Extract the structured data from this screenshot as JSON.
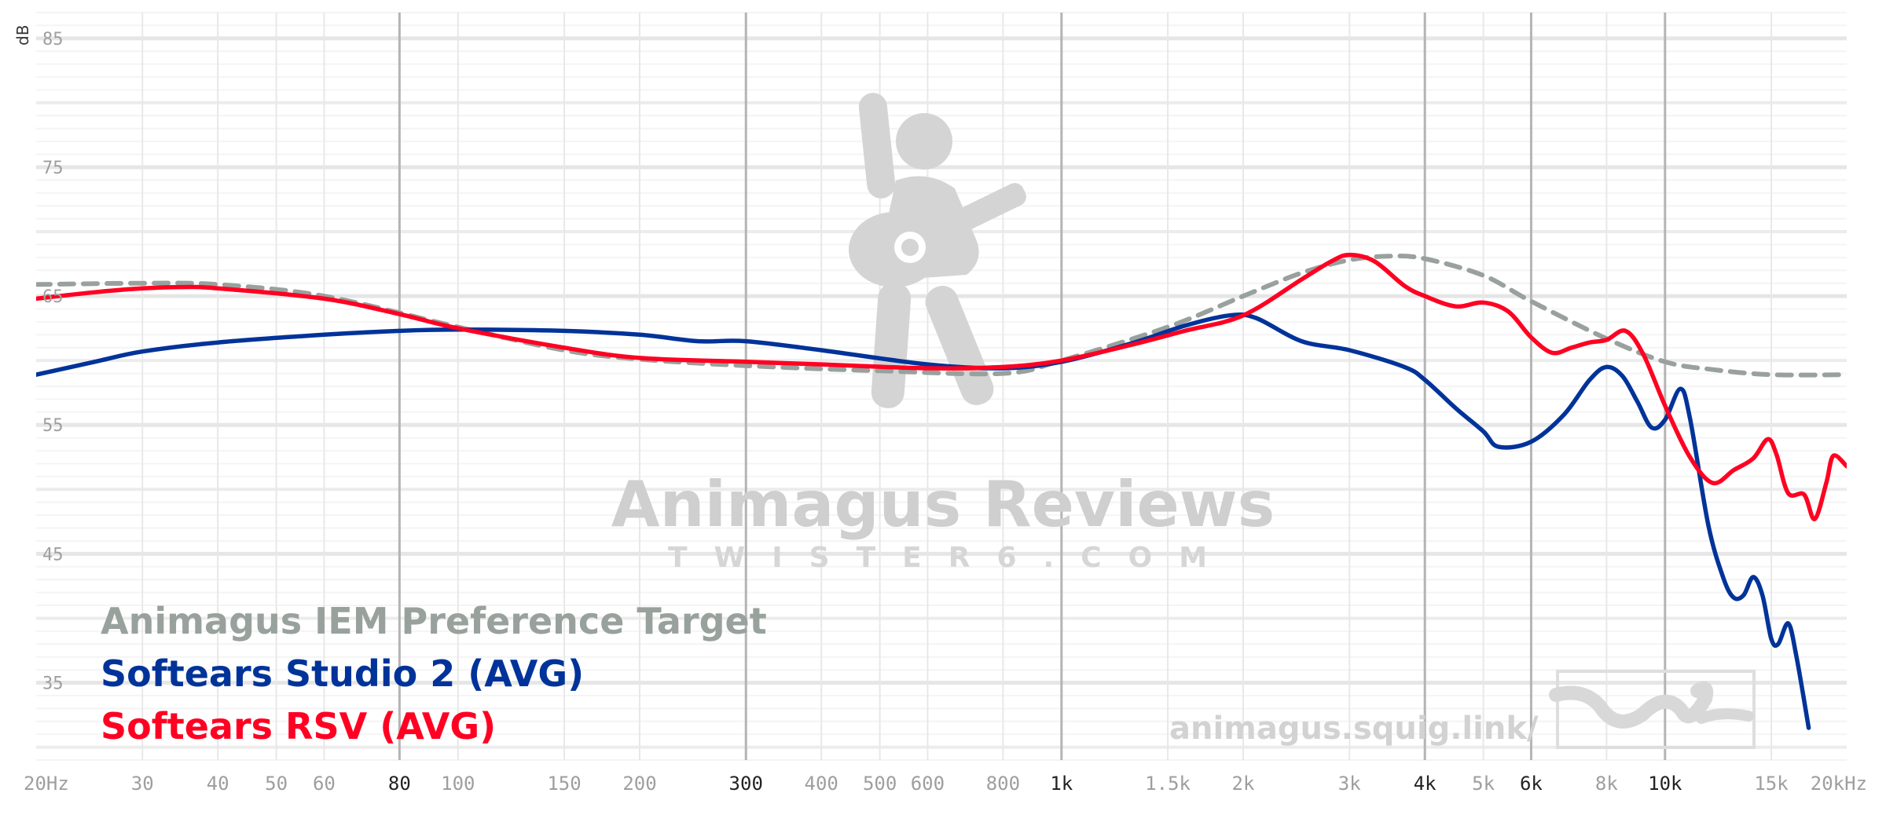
{
  "chart_data": {
    "type": "line",
    "ylabel": "dB",
    "xlabel": "",
    "x_scale": "log",
    "xlim": [
      20,
      20000
    ],
    "ylim": [
      29,
      87
    ],
    "y_ticks": [
      35,
      45,
      55,
      65,
      75,
      85
    ],
    "x_ticks": [
      {
        "value": 20,
        "label": "20Hz",
        "major": false
      },
      {
        "value": 30,
        "label": "30",
        "major": false
      },
      {
        "value": 40,
        "label": "40",
        "major": false
      },
      {
        "value": 50,
        "label": "50",
        "major": false
      },
      {
        "value": 60,
        "label": "60",
        "major": false
      },
      {
        "value": 80,
        "label": "80",
        "major": true
      },
      {
        "value": 100,
        "label": "100",
        "major": false
      },
      {
        "value": 150,
        "label": "150",
        "major": false
      },
      {
        "value": 200,
        "label": "200",
        "major": false
      },
      {
        "value": 300,
        "label": "300",
        "major": true
      },
      {
        "value": 400,
        "label": "400",
        "major": false
      },
      {
        "value": 500,
        "label": "500",
        "major": false
      },
      {
        "value": 600,
        "label": "600",
        "major": false
      },
      {
        "value": 800,
        "label": "800",
        "major": false
      },
      {
        "value": 1000,
        "label": "1k",
        "major": true
      },
      {
        "value": 1500,
        "label": "1.5k",
        "major": false
      },
      {
        "value": 2000,
        "label": "2k",
        "major": false
      },
      {
        "value": 3000,
        "label": "3k",
        "major": false
      },
      {
        "value": 4000,
        "label": "4k",
        "major": true
      },
      {
        "value": 5000,
        "label": "5k",
        "major": false
      },
      {
        "value": 6000,
        "label": "6k",
        "major": true
      },
      {
        "value": 8000,
        "label": "8k",
        "major": false
      },
      {
        "value": 10000,
        "label": "10k",
        "major": true
      },
      {
        "value": 15000,
        "label": "15k",
        "major": false
      },
      {
        "value": 20000,
        "label": "20kHz",
        "major": false
      }
    ],
    "grid": true,
    "legend_position": "bottom-left",
    "series": [
      {
        "name": "Animagus IEM Preference Target",
        "color": "#99a19d",
        "dashed": true,
        "points": [
          [
            20,
            65.9
          ],
          [
            30,
            66.0
          ],
          [
            40,
            65.9
          ],
          [
            60,
            65.0
          ],
          [
            100,
            62.6
          ],
          [
            150,
            60.8
          ],
          [
            200,
            60.1
          ],
          [
            300,
            59.6
          ],
          [
            500,
            59.2
          ],
          [
            800,
            59.0
          ],
          [
            1000,
            60.0
          ],
          [
            1500,
            62.6
          ],
          [
            2000,
            65.0
          ],
          [
            2500,
            66.8
          ],
          [
            3000,
            67.8
          ],
          [
            3500,
            68.1
          ],
          [
            4000,
            67.9
          ],
          [
            5000,
            66.6
          ],
          [
            6000,
            64.6
          ],
          [
            8000,
            61.7
          ],
          [
            10000,
            59.9
          ],
          [
            12000,
            59.3
          ],
          [
            15000,
            58.9
          ],
          [
            20000,
            58.9
          ]
        ]
      },
      {
        "name": "Softears Studio 2 (AVG)",
        "color": "#003399",
        "dashed": false,
        "points": [
          [
            20,
            58.9
          ],
          [
            25,
            59.9
          ],
          [
            30,
            60.7
          ],
          [
            40,
            61.4
          ],
          [
            60,
            62.0
          ],
          [
            80,
            62.3
          ],
          [
            100,
            62.4
          ],
          [
            150,
            62.3
          ],
          [
            200,
            62.0
          ],
          [
            250,
            61.5
          ],
          [
            300,
            61.5
          ],
          [
            400,
            60.8
          ],
          [
            600,
            59.7
          ],
          [
            800,
            59.4
          ],
          [
            1000,
            59.9
          ],
          [
            1300,
            61.3
          ],
          [
            1600,
            62.7
          ],
          [
            1900,
            63.5
          ],
          [
            2100,
            63.3
          ],
          [
            2500,
            61.5
          ],
          [
            3000,
            60.8
          ],
          [
            3700,
            59.5
          ],
          [
            4000,
            58.5
          ],
          [
            4500,
            56.3
          ],
          [
            5000,
            54.5
          ],
          [
            5300,
            53.3
          ],
          [
            6000,
            53.7
          ],
          [
            6800,
            55.8
          ],
          [
            7500,
            58.5
          ],
          [
            8000,
            59.5
          ],
          [
            8500,
            58.8
          ],
          [
            9000,
            56.8
          ],
          [
            9500,
            54.8
          ],
          [
            10000,
            55.4
          ],
          [
            10600,
            57.8
          ],
          [
            11000,
            55.5
          ],
          [
            11800,
            47.2
          ],
          [
            12500,
            43.1
          ],
          [
            13000,
            41.6
          ],
          [
            13500,
            41.8
          ],
          [
            14000,
            43.2
          ],
          [
            14500,
            41.8
          ],
          [
            15000,
            38.4
          ],
          [
            15400,
            38.0
          ],
          [
            16000,
            39.6
          ],
          [
            16500,
            37.1
          ],
          [
            17300,
            31.5
          ]
        ]
      },
      {
        "name": "Softears RSV (AVG)",
        "color": "#ff0022",
        "dashed": false,
        "points": [
          [
            20,
            64.8
          ],
          [
            25,
            65.3
          ],
          [
            30,
            65.6
          ],
          [
            35,
            65.7
          ],
          [
            40,
            65.6
          ],
          [
            60,
            64.8
          ],
          [
            80,
            63.6
          ],
          [
            100,
            62.5
          ],
          [
            150,
            61.0
          ],
          [
            200,
            60.2
          ],
          [
            300,
            59.9
          ],
          [
            400,
            59.7
          ],
          [
            600,
            59.4
          ],
          [
            800,
            59.5
          ],
          [
            1000,
            60.0
          ],
          [
            1300,
            61.2
          ],
          [
            1600,
            62.3
          ],
          [
            2000,
            63.5
          ],
          [
            2500,
            66.3
          ],
          [
            2800,
            67.7
          ],
          [
            3000,
            68.2
          ],
          [
            3300,
            67.7
          ],
          [
            3700,
            65.8
          ],
          [
            4000,
            65.0
          ],
          [
            4500,
            64.2
          ],
          [
            5000,
            64.5
          ],
          [
            5500,
            63.8
          ],
          [
            6000,
            61.8
          ],
          [
            6500,
            60.6
          ],
          [
            7000,
            61.0
          ],
          [
            7500,
            61.4
          ],
          [
            8000,
            61.6
          ],
          [
            8600,
            62.3
          ],
          [
            9200,
            60.5
          ],
          [
            10000,
            56.5
          ],
          [
            11000,
            52.5
          ],
          [
            12000,
            50.5
          ],
          [
            13000,
            51.5
          ],
          [
            14000,
            52.4
          ],
          [
            14800,
            53.9
          ],
          [
            15300,
            52.7
          ],
          [
            16000,
            49.7
          ],
          [
            17000,
            49.6
          ],
          [
            17700,
            47.7
          ],
          [
            18500,
            50.5
          ],
          [
            19000,
            52.6
          ],
          [
            20000,
            51.8
          ]
        ]
      }
    ]
  },
  "watermark": {
    "title": "Animagus Reviews",
    "subtitle": "TWISTER6.COM",
    "url": "animagus.squig.link/"
  }
}
